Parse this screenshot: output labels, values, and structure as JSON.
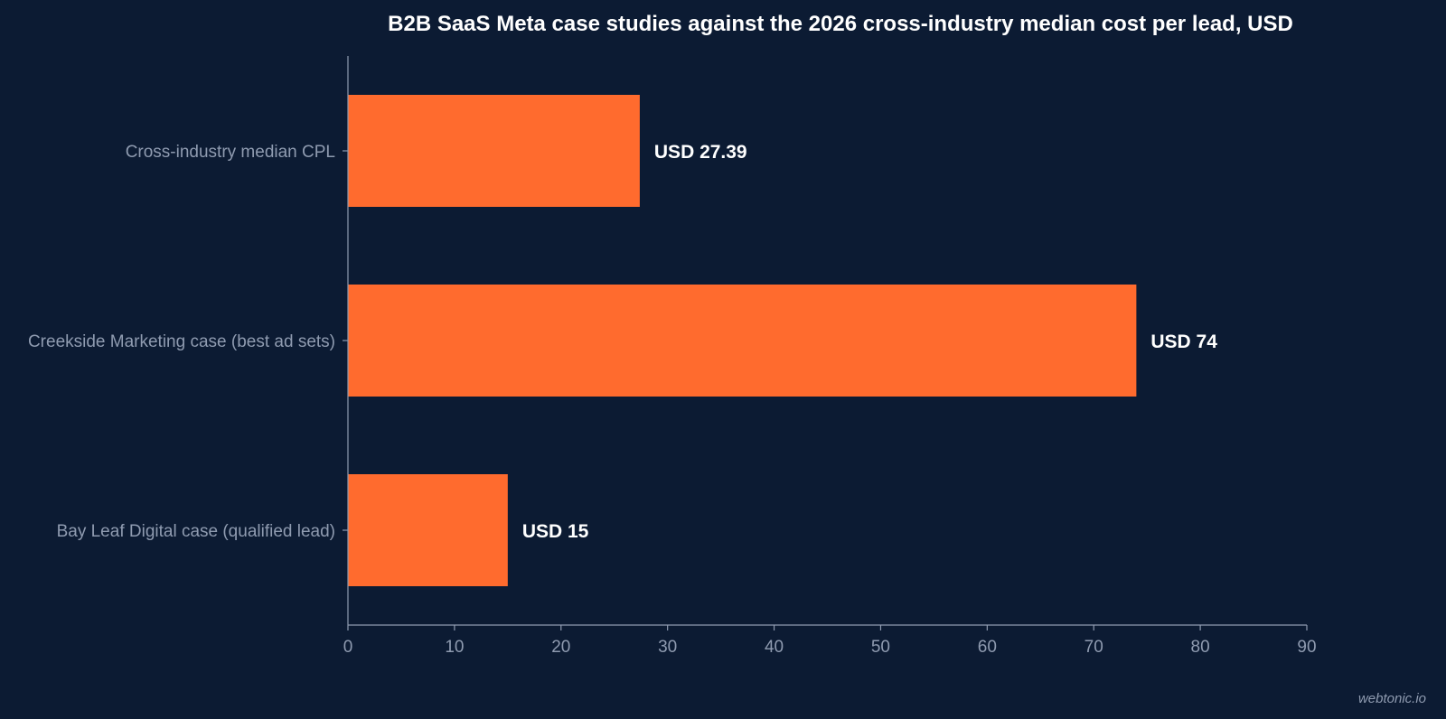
{
  "chart_data": {
    "type": "bar",
    "orientation": "horizontal",
    "title": "B2B SaaS Meta case studies against the 2026 cross-industry median cost per lead, USD",
    "xlabel": "",
    "ylabel": "",
    "categories": [
      "Cross-industry median CPL",
      "Creekside Marketing case (best ad sets)",
      "Bay Leaf Digital case (qualified lead)"
    ],
    "values": [
      27.39,
      74,
      15
    ],
    "data_labels": [
      "USD 27.39",
      "USD 74",
      "USD 15"
    ],
    "xlim": [
      0,
      90
    ],
    "xticks": [
      0,
      10,
      20,
      30,
      40,
      50,
      60,
      70,
      80,
      90
    ],
    "grid": false,
    "legend": "none",
    "bar_color": "#ff6b2e",
    "background_color": "#0c1b33"
  },
  "watermark": "webtonic.io"
}
